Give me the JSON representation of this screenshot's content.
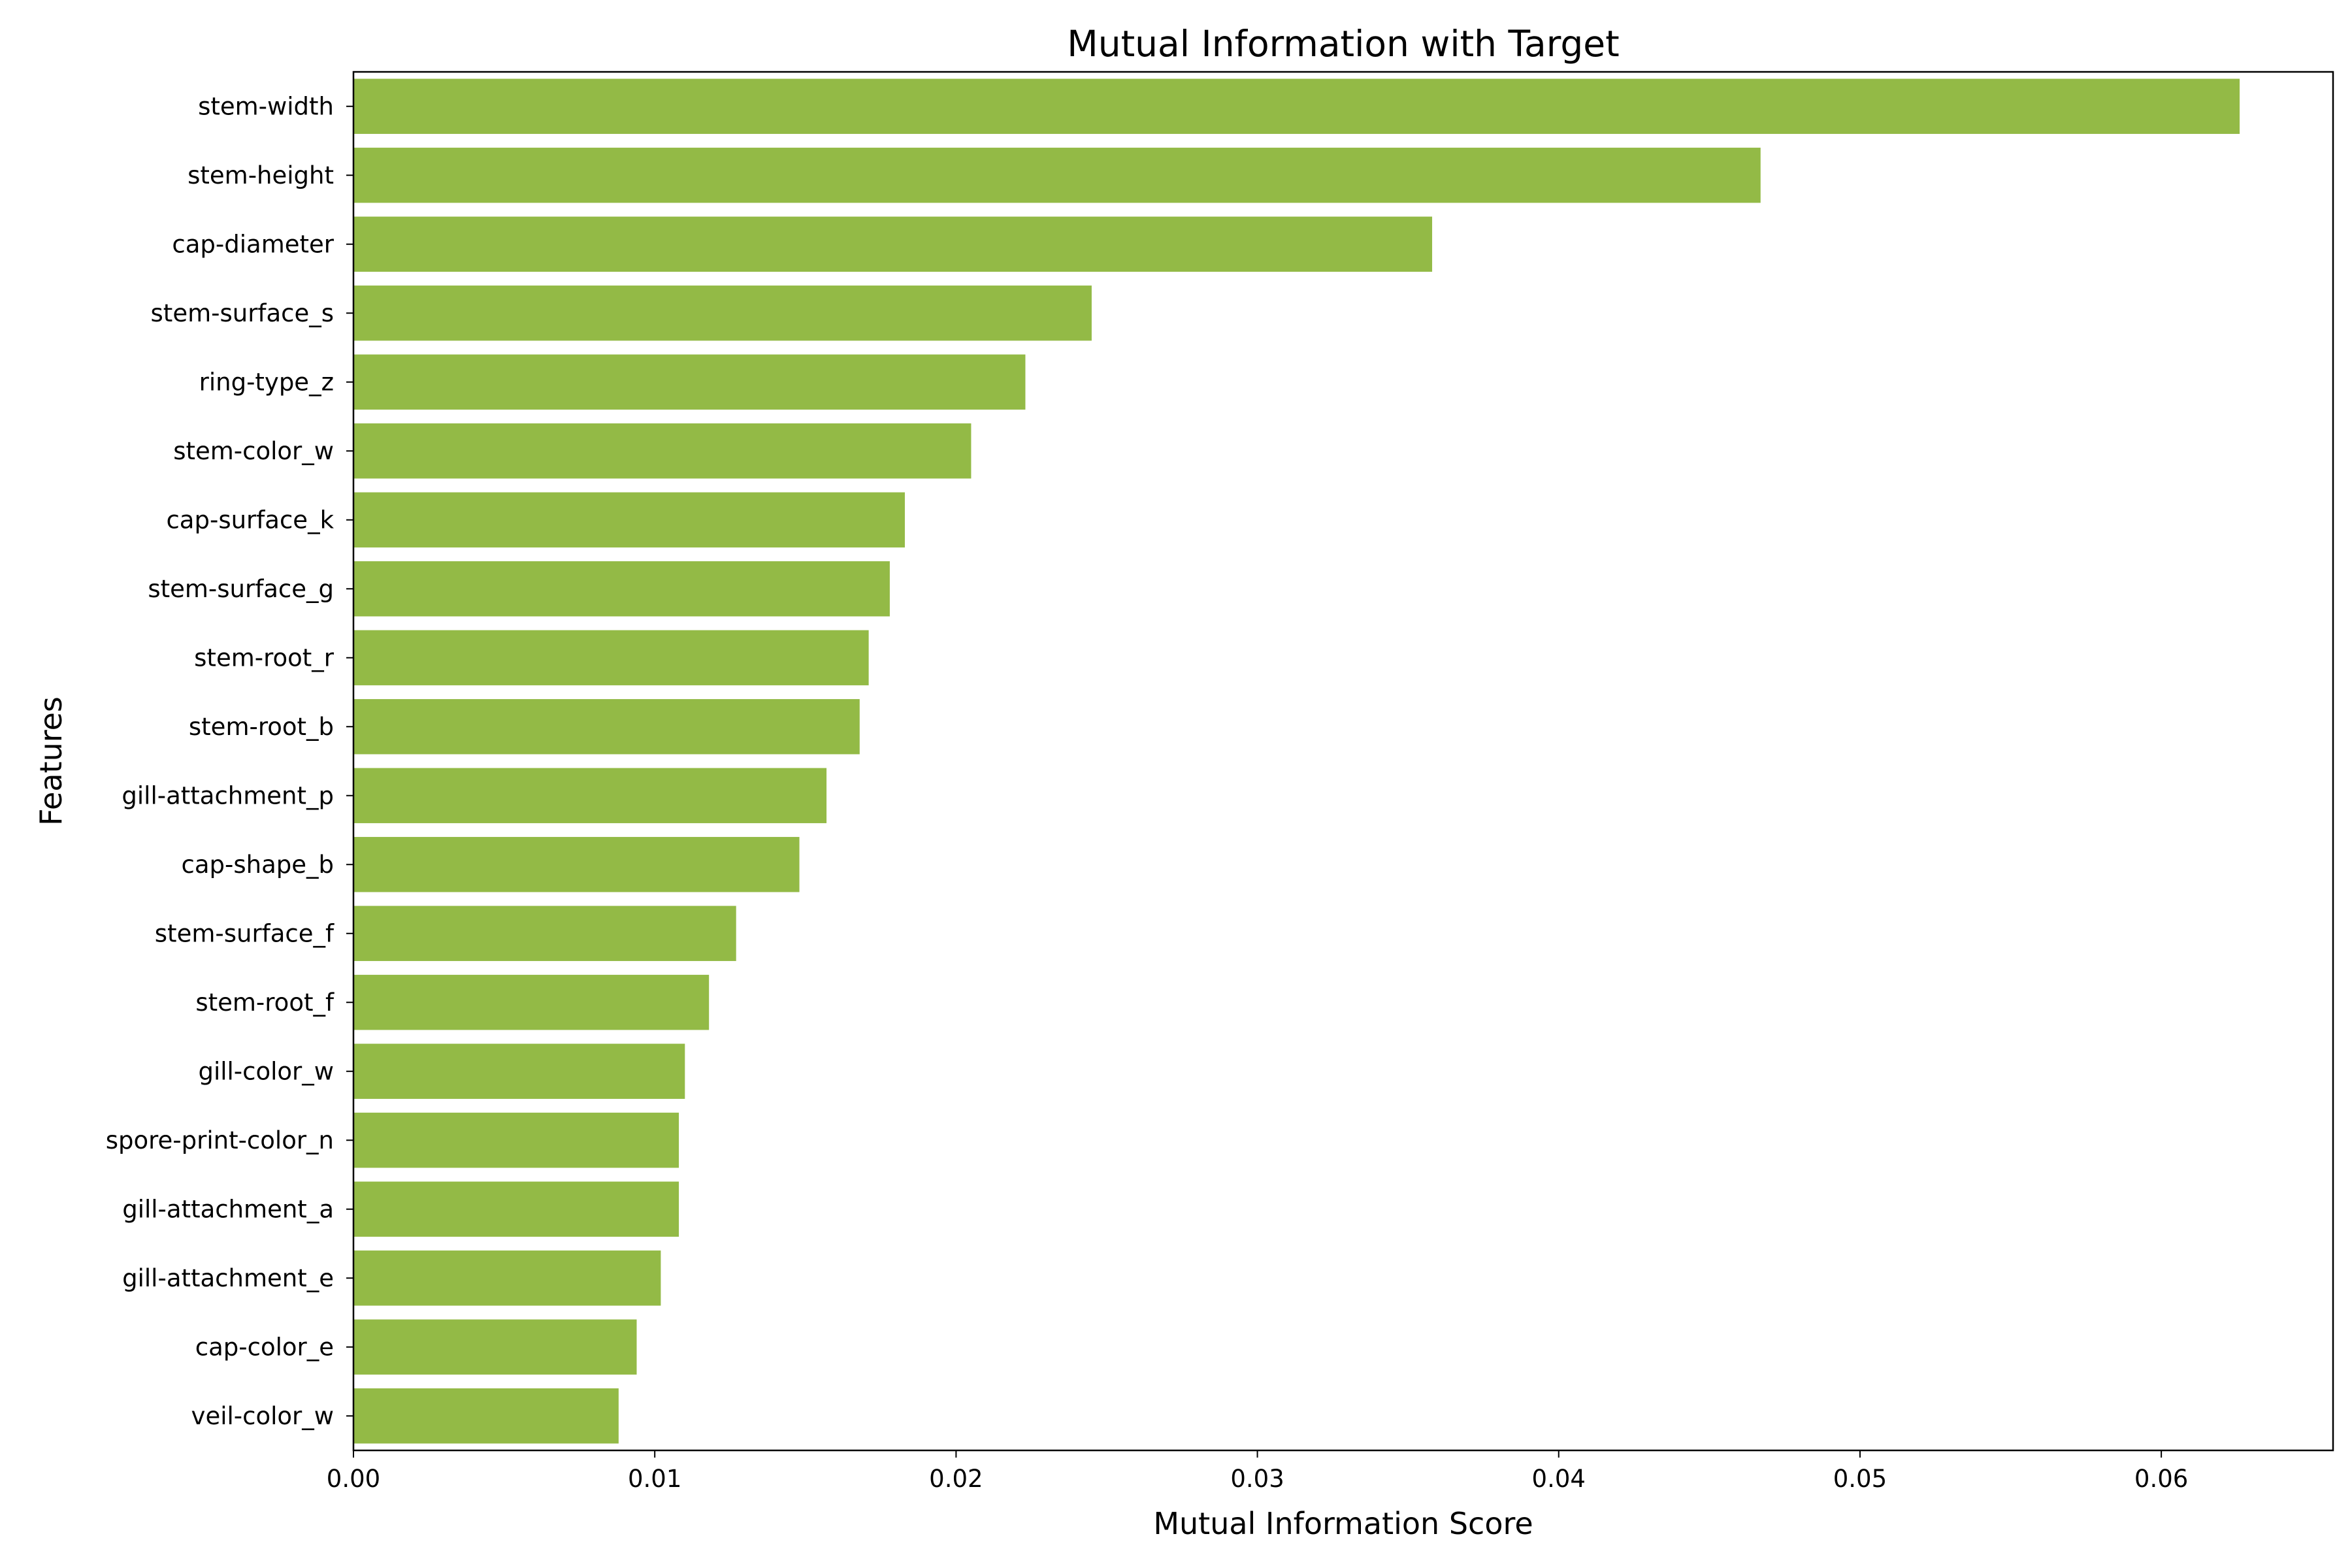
{
  "chart_data": {
    "type": "bar",
    "orientation": "horizontal",
    "title": "Mutual Information with Target",
    "xlabel": "Mutual Information Score",
    "ylabel": "Features",
    "xlim": [
      0,
      0.0657
    ],
    "xticks": [
      0.0,
      0.01,
      0.02,
      0.03,
      0.04,
      0.05,
      0.06
    ],
    "xtick_labels": [
      "0.00",
      "0.01",
      "0.02",
      "0.03",
      "0.04",
      "0.05",
      "0.06"
    ],
    "grid": false,
    "bar_color": "#93BA46",
    "categories": [
      "stem-width",
      "stem-height",
      "cap-diameter",
      "stem-surface_s",
      "ring-type_z",
      "stem-color_w",
      "cap-surface_k",
      "stem-surface_g",
      "stem-root_r",
      "stem-root_b",
      "gill-attachment_p",
      "cap-shape_b",
      "stem-surface_f",
      "stem-root_f",
      "gill-color_w",
      "spore-print-color_n",
      "gill-attachment_a",
      "gill-attachment_e",
      "cap-color_e",
      "veil-color_w"
    ],
    "values": [
      0.0626,
      0.0467,
      0.0358,
      0.0245,
      0.0223,
      0.0205,
      0.0183,
      0.0178,
      0.0171,
      0.0168,
      0.0157,
      0.0148,
      0.0127,
      0.0118,
      0.011,
      0.0108,
      0.0108,
      0.0102,
      0.0094,
      0.0088
    ]
  }
}
